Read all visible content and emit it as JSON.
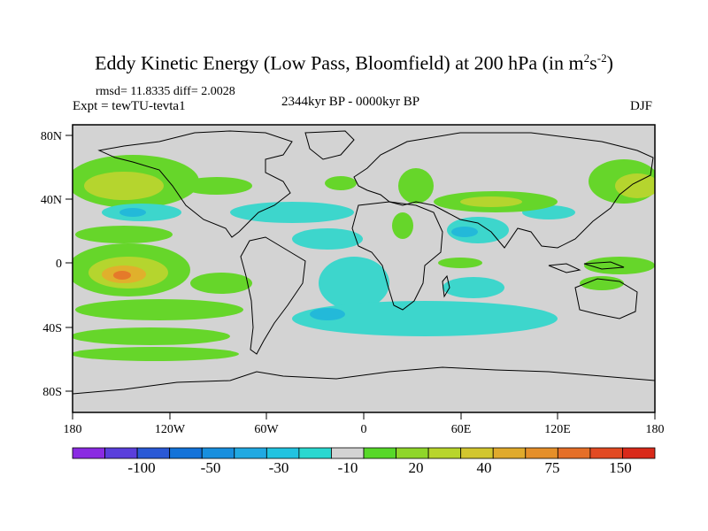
{
  "title": {
    "main": "Eddy Kinetic Energy (Low Pass, Bloomfield) at 200 hPa (in m",
    "exp1": "2",
    "mid": "s",
    "exp2": "-2",
    "tail": ")"
  },
  "stats": "rmsd= 11.8335 diff= 2.0028",
  "experiment": "Expt = tewTU-tevta1",
  "period": "2344kyr BP - 0000kyr BP",
  "season": "DJF",
  "map": {
    "lat_labels": [
      "80N",
      "40N",
      "0",
      "40S",
      "80S"
    ],
    "lon_labels": [
      "180",
      "120W",
      "60W",
      "0",
      "60E",
      "120E",
      "180"
    ],
    "background_color": "#d3d3d3"
  },
  "colorbar": {
    "colors": [
      "#8a2be2",
      "#5a3fdc",
      "#2a59d6",
      "#1473d9",
      "#188fde",
      "#21a9e2",
      "#21c3e0",
      "#2ad8d0",
      "#d3d3d3",
      "#57d829",
      "#8fd62a",
      "#b8d52c",
      "#d2c62e",
      "#e0aa2c",
      "#e58f2a",
      "#e56f28",
      "#e24a22",
      "#d92a1a"
    ],
    "labels": [
      "-100",
      "-50",
      "-30",
      "-10",
      "20",
      "40",
      "75",
      "150"
    ]
  },
  "palette": {
    "low": "#3dd6cc",
    "low_deep": "#23b9d9",
    "high1": "#66d62a",
    "high2": "#b5d52e",
    "high3": "#e0b02c",
    "high4": "#e57a2a"
  }
}
